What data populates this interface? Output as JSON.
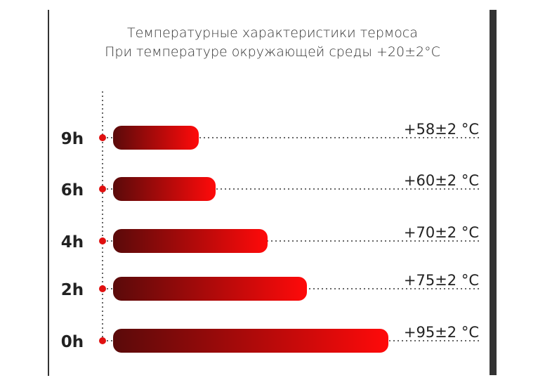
{
  "chart_data": {
    "type": "bar",
    "orientation": "horizontal",
    "title": "Температурные характеристики термоса",
    "subtitle": "При температуре окружающей среды +20±2°C",
    "categories": [
      "9h",
      "6h",
      "4h",
      "2h",
      "0h"
    ],
    "values": [
      58,
      60,
      70,
      75,
      95
    ],
    "tolerance": 2,
    "unit": "°C",
    "value_labels": [
      "+58±2 °C",
      "+60±2 °C",
      "+70±2 °C",
      "+75±2 °C",
      "+95±2 °C"
    ],
    "colors": {
      "bar_start": "#5a0a0a",
      "bar_end": "#ff0a0a",
      "dot": "#e01010",
      "text": "#222222"
    },
    "grid": false
  }
}
